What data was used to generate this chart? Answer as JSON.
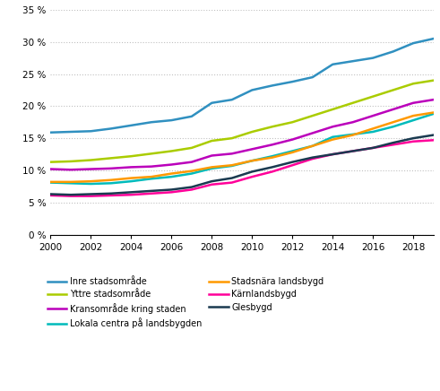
{
  "years": [
    2000,
    2001,
    2002,
    2003,
    2004,
    2005,
    2006,
    2007,
    2008,
    2009,
    2010,
    2011,
    2012,
    2013,
    2014,
    2015,
    2016,
    2017,
    2018,
    2019
  ],
  "series": {
    "Inre stadsområde": [
      15.9,
      16.0,
      16.1,
      16.5,
      17.0,
      17.5,
      17.8,
      18.4,
      20.5,
      21.0,
      22.5,
      23.2,
      23.8,
      24.5,
      26.5,
      27.0,
      27.5,
      28.5,
      29.8,
      30.5
    ],
    "Yttre stadsområde": [
      11.3,
      11.4,
      11.6,
      11.9,
      12.2,
      12.6,
      13.0,
      13.5,
      14.6,
      15.0,
      16.0,
      16.8,
      17.5,
      18.5,
      19.5,
      20.5,
      21.5,
      22.5,
      23.5,
      24.0
    ],
    "Kransområde kring staden": [
      10.2,
      10.1,
      10.2,
      10.3,
      10.5,
      10.6,
      10.9,
      11.3,
      12.3,
      12.6,
      13.3,
      14.0,
      14.8,
      15.8,
      16.8,
      17.5,
      18.5,
      19.5,
      20.5,
      21.0
    ],
    "Lokala centra på landsbygden": [
      8.1,
      8.0,
      7.9,
      8.0,
      8.3,
      8.7,
      9.0,
      9.5,
      10.3,
      10.7,
      11.5,
      12.2,
      13.0,
      13.8,
      15.2,
      15.6,
      16.0,
      16.8,
      17.8,
      18.8
    ],
    "Stadsnära landsbygd": [
      8.2,
      8.2,
      8.3,
      8.5,
      8.8,
      9.0,
      9.5,
      9.9,
      10.5,
      10.8,
      11.5,
      12.0,
      12.8,
      13.8,
      14.8,
      15.5,
      16.5,
      17.5,
      18.5,
      19.0
    ],
    "Kärnlandsbygd": [
      6.1,
      6.0,
      6.0,
      6.1,
      6.2,
      6.4,
      6.6,
      7.0,
      7.8,
      8.1,
      9.0,
      9.8,
      10.8,
      11.8,
      12.5,
      13.0,
      13.5,
      14.0,
      14.5,
      14.7
    ],
    "Glesbygd": [
      6.3,
      6.2,
      6.3,
      6.4,
      6.6,
      6.8,
      7.0,
      7.4,
      8.3,
      8.8,
      9.8,
      10.5,
      11.3,
      12.0,
      12.5,
      13.0,
      13.5,
      14.3,
      15.0,
      15.5
    ]
  },
  "colors": {
    "Inre stadsområde": "#3090C0",
    "Yttre stadsområde": "#AACC00",
    "Kransområde kring staden": "#BB00BB",
    "Lokala centra på landsbygden": "#00BBBB",
    "Stadsnära landsbygd": "#FF9900",
    "Kärnlandsbygd": "#FF0099",
    "Glesbygd": "#1A3A50"
  },
  "ylim": [
    0,
    35
  ],
  "yticks": [
    0,
    5,
    10,
    15,
    20,
    25,
    30,
    35
  ],
  "xticks": [
    2000,
    2002,
    2004,
    2006,
    2008,
    2010,
    2012,
    2014,
    2016,
    2018
  ],
  "left_col": [
    "Inre stadsområde",
    "Kransområde kring staden",
    "Stadsnära landsbygd",
    "Glesbygd"
  ],
  "right_col": [
    "Yttre stadsområde",
    "Lokala centra på landsbygden",
    "Kärnlandsbygd"
  ]
}
